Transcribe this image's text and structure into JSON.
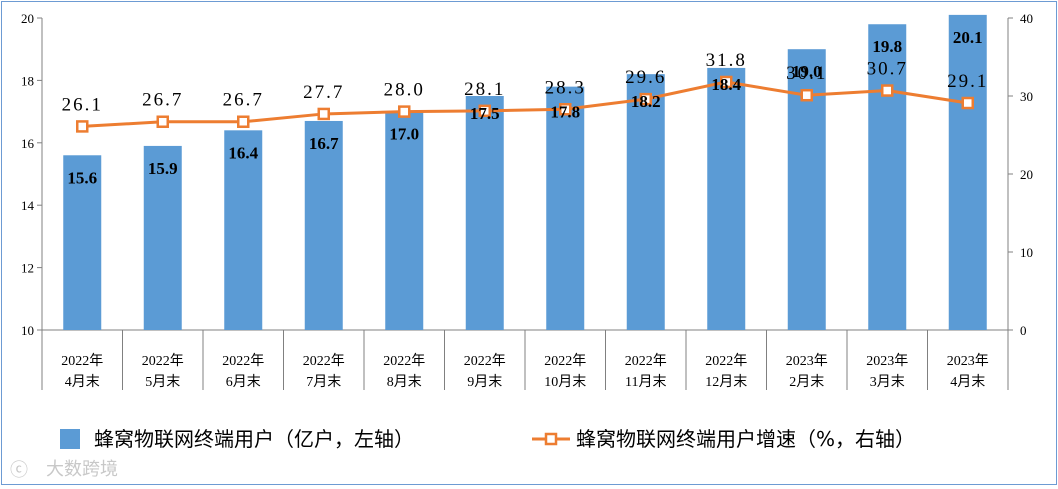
{
  "chart_data": {
    "type": "bar+line",
    "categories": [
      [
        "2022年",
        "4月末"
      ],
      [
        "2022年",
        "5月末"
      ],
      [
        "2022年",
        "6月末"
      ],
      [
        "2022年",
        "7月末"
      ],
      [
        "2022年",
        "8月末"
      ],
      [
        "2022年",
        "9月末"
      ],
      [
        "2022年",
        "10月末"
      ],
      [
        "2022年",
        "11月末"
      ],
      [
        "2022年",
        "12月末"
      ],
      [
        "2023年",
        "2月末"
      ],
      [
        "2023年",
        "3月末"
      ],
      [
        "2023年",
        "4月末"
      ]
    ],
    "series": [
      {
        "name": "蜂窝物联网终端用户（亿户，左轴）",
        "type": "bar",
        "axis": "left",
        "color": "#5b9bd5",
        "values": [
          15.6,
          15.9,
          16.4,
          16.7,
          17.0,
          17.5,
          17.8,
          18.2,
          18.4,
          19.0,
          19.8,
          20.1
        ],
        "labels": [
          "15.6",
          "15.9",
          "16.4",
          "16.7",
          "17.0",
          "17.5",
          "17.8",
          "18.2",
          "18.4",
          "19.0",
          "19.8",
          "20.1"
        ]
      },
      {
        "name": "蜂窝物联网终端用户增速（%，右轴）",
        "type": "line",
        "axis": "right",
        "color": "#ed7d31",
        "values": [
          26.1,
          26.7,
          26.7,
          27.7,
          28.0,
          28.1,
          28.3,
          29.6,
          31.8,
          30.1,
          30.7,
          29.1
        ],
        "labels": [
          "26.1",
          "26.7",
          "26.7",
          "27.7",
          "28.0",
          "28.1",
          "28.3",
          "29.6",
          "31.8",
          "30.1",
          "30.7",
          "29.1"
        ]
      }
    ],
    "y_left": {
      "min": 10,
      "max": 20,
      "ticks": [
        "10",
        "12",
        "14",
        "16",
        "18",
        "20"
      ]
    },
    "y_right": {
      "min": 0,
      "max": 40,
      "ticks": [
        "0",
        "10",
        "20",
        "30",
        "40"
      ]
    },
    "grid": false,
    "legend_position": "bottom"
  },
  "watermark": "大数跨境"
}
